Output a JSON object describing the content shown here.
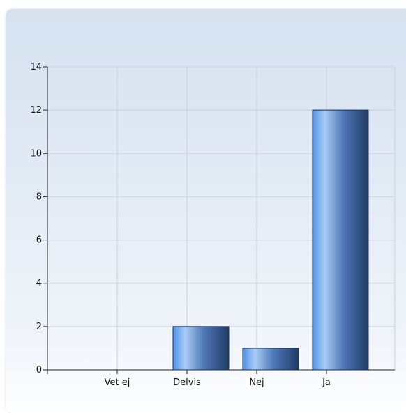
{
  "chart_data": {
    "type": "bar",
    "categories": [
      "Vet ej",
      "Delvis",
      "Nej",
      "Ja"
    ],
    "values": [
      0,
      2,
      1,
      12
    ],
    "title": "",
    "xlabel": "",
    "ylabel": "",
    "ylim": [
      0,
      14
    ],
    "yticks": [
      0,
      2,
      4,
      6,
      8,
      10,
      12,
      14
    ],
    "grid": true,
    "bar_color_light": "#a9cdf5",
    "bar_color_dark": "#1f3b66"
  }
}
